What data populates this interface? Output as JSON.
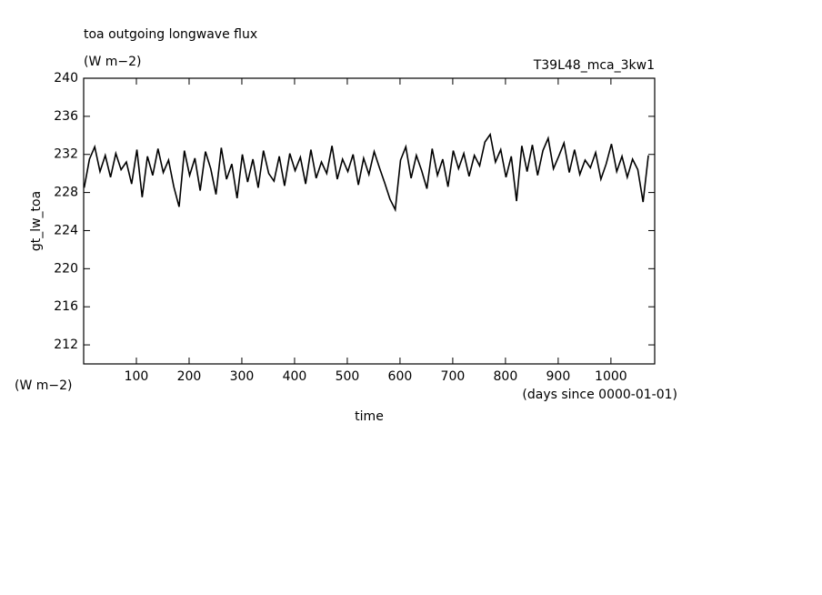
{
  "chart_data": {
    "type": "line",
    "title": "toa outgoing longwave flux",
    "subtitle": "(W m−2)",
    "run_label": "T39L48_mca_3kw1",
    "y_label": "gt_lw_toa",
    "y_unit": "(W m−2)",
    "x_label": "time",
    "x_unit": "(days since 0000-01-01)",
    "xlim": [
      0,
      1083
    ],
    "ylim": [
      210,
      240
    ],
    "xticks": [
      100,
      200,
      300,
      400,
      500,
      600,
      700,
      800,
      900,
      1000
    ],
    "yticks": [
      212,
      216,
      220,
      224,
      228,
      232,
      236,
      240
    ],
    "x": [
      1,
      11,
      21,
      31,
      41,
      51,
      61,
      71,
      81,
      91,
      101,
      111,
      121,
      131,
      141,
      151,
      161,
      171,
      181,
      191,
      201,
      211,
      221,
      231,
      241,
      251,
      261,
      271,
      281,
      291,
      301,
      311,
      321,
      331,
      341,
      351,
      361,
      371,
      381,
      391,
      401,
      411,
      421,
      431,
      441,
      451,
      461,
      471,
      481,
      491,
      501,
      511,
      521,
      531,
      541,
      551,
      561,
      571,
      581,
      591,
      601,
      611,
      621,
      631,
      641,
      651,
      661,
      671,
      681,
      691,
      701,
      711,
      721,
      731,
      741,
      751,
      761,
      771,
      781,
      791,
      801,
      811,
      821,
      831,
      841,
      851,
      861,
      871,
      881,
      891,
      901,
      911,
      921,
      931,
      941,
      951,
      961,
      971,
      981,
      991,
      1001,
      1011,
      1021,
      1031,
      1041,
      1051,
      1061,
      1071
    ],
    "series": [
      {
        "color": "#000000",
        "values": [
          228.5,
          231.5,
          232.8,
          230.2,
          231.9,
          229.6,
          232.1,
          230.4,
          231.2,
          228.9,
          232.5,
          227.5,
          231.8,
          229.8,
          232.6,
          230.1,
          231.4,
          228.6,
          226.5,
          232.4,
          229.8,
          231.6,
          228.2,
          232.3,
          230.5,
          227.8,
          232.7,
          229.4,
          231.0,
          227.4,
          232.0,
          229.1,
          231.5,
          228.5,
          232.4,
          230.0,
          229.2,
          231.8,
          228.7,
          232.1,
          230.3,
          231.7,
          228.9,
          232.5,
          229.5,
          231.2,
          230.0,
          232.9,
          229.4,
          231.5,
          230.2,
          232.0,
          228.8,
          231.6,
          229.9,
          232.3,
          230.6,
          229.0,
          227.3,
          226.2,
          231.4,
          232.8,
          229.5,
          231.9,
          230.3,
          228.4,
          232.6,
          229.8,
          231.5,
          228.6,
          232.4,
          230.5,
          232.1,
          229.7,
          231.9,
          230.8,
          233.3,
          234.1,
          231.2,
          232.5,
          229.6,
          231.8,
          227.1,
          232.9,
          230.2,
          233.0,
          229.8,
          232.4,
          233.7,
          230.5,
          231.8,
          233.2,
          230.1,
          232.5,
          229.9,
          231.4,
          230.6,
          232.2,
          229.4,
          231.0,
          233.1,
          230.2,
          231.8,
          229.6,
          231.5,
          230.4,
          227.0,
          231.9
        ]
      }
    ]
  }
}
